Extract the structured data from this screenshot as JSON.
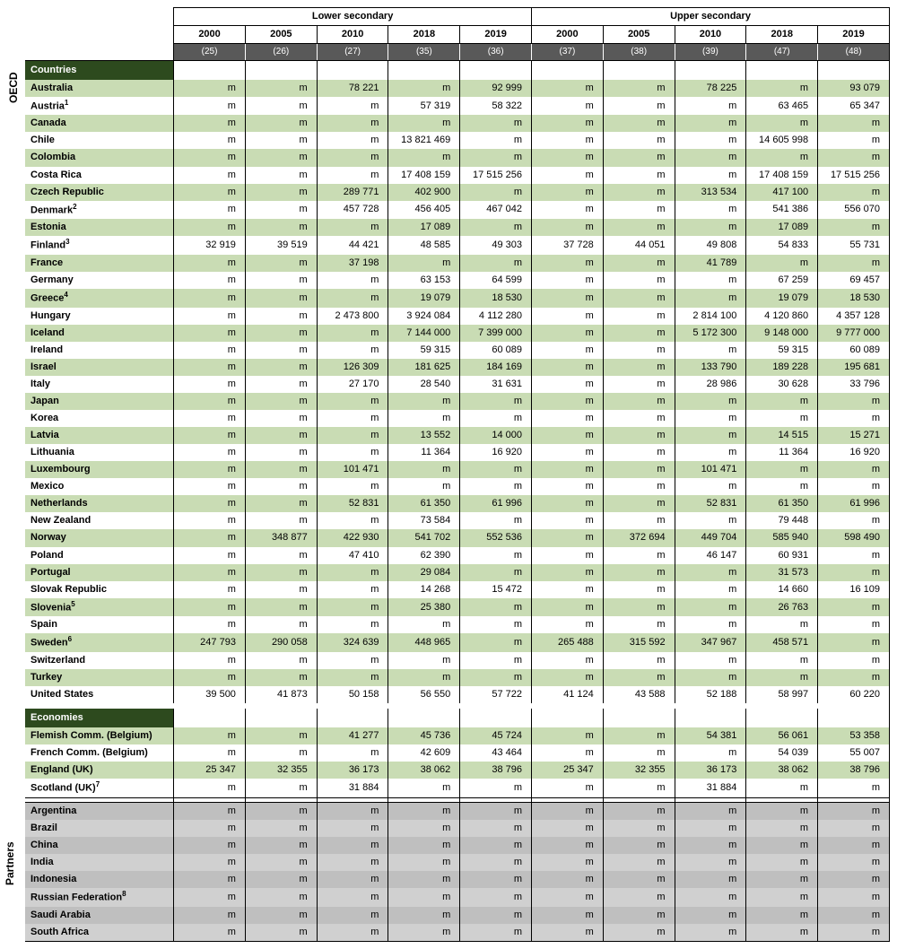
{
  "header": {
    "group_left": "Lower secondary",
    "group_right": "Upper secondary",
    "years_left": [
      "2000",
      "2005",
      "2010",
      "2018",
      "2019"
    ],
    "years_right": [
      "2000",
      "2005",
      "2010",
      "2018",
      "2019"
    ],
    "codes_left": [
      "(25)",
      "(26)",
      "(27)",
      "(35)",
      "(36)"
    ],
    "codes_right": [
      "(37)",
      "(38)",
      "(39)",
      "(47)",
      "(48)"
    ]
  },
  "vlabels": {
    "oecd": "OECD",
    "partners": "Partners"
  },
  "sections": {
    "countries": "Countries",
    "economies": "Economies"
  },
  "colors": {
    "section_bg": "#2d4a1e",
    "stripe_bg": "#c9dcb4",
    "code_bg": "#595959",
    "grey_bg": "#d0d0d0",
    "grey_alt_bg": "#bfbfbf"
  },
  "countries": [
    {
      "name": "Australia",
      "sup": "",
      "vals": [
        "m",
        "m",
        "78 221",
        "m",
        "92 999",
        "m",
        "m",
        "78 225",
        "m",
        "93 079"
      ]
    },
    {
      "name": "Austria",
      "sup": "1",
      "vals": [
        "m",
        "m",
        "m",
        "57 319",
        "58 322",
        "m",
        "m",
        "m",
        "63 465",
        "65 347"
      ]
    },
    {
      "name": "Canada",
      "sup": "",
      "vals": [
        "m",
        "m",
        "m",
        "m",
        "m",
        "m",
        "m",
        "m",
        "m",
        "m"
      ]
    },
    {
      "name": "Chile",
      "sup": "",
      "vals": [
        "m",
        "m",
        "m",
        "13 821 469",
        "m",
        "m",
        "m",
        "m",
        "14 605 998",
        "m"
      ]
    },
    {
      "name": "Colombia",
      "sup": "",
      "vals": [
        "m",
        "m",
        "m",
        "m",
        "m",
        "m",
        "m",
        "m",
        "m",
        "m"
      ]
    },
    {
      "name": "Costa Rica",
      "sup": "",
      "vals": [
        "m",
        "m",
        "m",
        "17 408 159",
        "17 515 256",
        "m",
        "m",
        "m",
        "17 408 159",
        "17 515 256"
      ]
    },
    {
      "name": "Czech Republic",
      "sup": "",
      "vals": [
        "m",
        "m",
        "289 771",
        "402 900",
        "m",
        "m",
        "m",
        "313 534",
        "417 100",
        "m"
      ]
    },
    {
      "name": "Denmark",
      "sup": "2",
      "vals": [
        "m",
        "m",
        "457 728",
        "456 405",
        "467 042",
        "m",
        "m",
        "m",
        "541 386",
        "556 070"
      ]
    },
    {
      "name": "Estonia",
      "sup": "",
      "vals": [
        "m",
        "m",
        "m",
        "17 089",
        "m",
        "m",
        "m",
        "m",
        "17 089",
        "m"
      ]
    },
    {
      "name": "Finland",
      "sup": "3",
      "vals": [
        "32 919",
        "39 519",
        "44 421",
        "48 585",
        "49 303",
        "37 728",
        "44 051",
        "49 808",
        "54 833",
        "55 731"
      ]
    },
    {
      "name": "France",
      "sup": "",
      "vals": [
        "m",
        "m",
        "37 198",
        "m",
        "m",
        "m",
        "m",
        "41 789",
        "m",
        "m"
      ]
    },
    {
      "name": "Germany",
      "sup": "",
      "vals": [
        "m",
        "m",
        "m",
        "63 153",
        "64 599",
        "m",
        "m",
        "m",
        "67 259",
        "69 457"
      ]
    },
    {
      "name": "Greece",
      "sup": "4",
      "vals": [
        "m",
        "m",
        "m",
        "19 079",
        "18 530",
        "m",
        "m",
        "m",
        "19 079",
        "18 530"
      ]
    },
    {
      "name": "Hungary",
      "sup": "",
      "vals": [
        "m",
        "m",
        "2 473 800",
        "3 924 084",
        "4 112 280",
        "m",
        "m",
        "2 814 100",
        "4 120 860",
        "4 357 128"
      ]
    },
    {
      "name": "Iceland",
      "sup": "",
      "vals": [
        "m",
        "m",
        "m",
        "7 144 000",
        "7 399 000",
        "m",
        "m",
        "5 172 300",
        "9 148 000",
        "9 777 000"
      ]
    },
    {
      "name": "Ireland",
      "sup": "",
      "vals": [
        "m",
        "m",
        "m",
        "59 315",
        "60 089",
        "m",
        "m",
        "m",
        "59 315",
        "60 089"
      ]
    },
    {
      "name": "Israel",
      "sup": "",
      "vals": [
        "m",
        "m",
        "126 309",
        "181 625",
        "184 169",
        "m",
        "m",
        "133 790",
        "189 228",
        "195 681"
      ]
    },
    {
      "name": "Italy",
      "sup": "",
      "vals": [
        "m",
        "m",
        "27 170",
        "28 540",
        "31 631",
        "m",
        "m",
        "28 986",
        "30 628",
        "33 796"
      ]
    },
    {
      "name": "Japan",
      "sup": "",
      "vals": [
        "m",
        "m",
        "m",
        "m",
        "m",
        "m",
        "m",
        "m",
        "m",
        "m"
      ]
    },
    {
      "name": "Korea",
      "sup": "",
      "vals": [
        "m",
        "m",
        "m",
        "m",
        "m",
        "m",
        "m",
        "m",
        "m",
        "m"
      ]
    },
    {
      "name": "Latvia",
      "sup": "",
      "vals": [
        "m",
        "m",
        "m",
        "13 552",
        "14 000",
        "m",
        "m",
        "m",
        "14 515",
        "15 271"
      ]
    },
    {
      "name": "Lithuania",
      "sup": "",
      "vals": [
        "m",
        "m",
        "m",
        "11 364",
        "16 920",
        "m",
        "m",
        "m",
        "11 364",
        "16 920"
      ]
    },
    {
      "name": "Luxembourg",
      "sup": "",
      "vals": [
        "m",
        "m",
        "101 471",
        "m",
        "m",
        "m",
        "m",
        "101 471",
        "m",
        "m"
      ]
    },
    {
      "name": "Mexico",
      "sup": "",
      "vals": [
        "m",
        "m",
        "m",
        "m",
        "m",
        "m",
        "m",
        "m",
        "m",
        "m"
      ]
    },
    {
      "name": "Netherlands",
      "sup": "",
      "vals": [
        "m",
        "m",
        "52 831",
        "61 350",
        "61 996",
        "m",
        "m",
        "52 831",
        "61 350",
        "61 996"
      ]
    },
    {
      "name": "New Zealand",
      "sup": "",
      "vals": [
        "m",
        "m",
        "m",
        "73 584",
        "m",
        "m",
        "m",
        "m",
        "79 448",
        "m"
      ]
    },
    {
      "name": "Norway",
      "sup": "",
      "vals": [
        "m",
        "348 877",
        "422 930",
        "541 702",
        "552 536",
        "m",
        "372 694",
        "449 704",
        "585 940",
        "598 490"
      ]
    },
    {
      "name": "Poland",
      "sup": "",
      "vals": [
        "m",
        "m",
        "47 410",
        "62 390",
        "m",
        "m",
        "m",
        "46 147",
        "60 931",
        "m"
      ]
    },
    {
      "name": "Portugal",
      "sup": "",
      "vals": [
        "m",
        "m",
        "m",
        "29 084",
        "m",
        "m",
        "m",
        "m",
        "31 573",
        "m"
      ]
    },
    {
      "name": "Slovak Republic",
      "sup": "",
      "vals": [
        "m",
        "m",
        "m",
        "14 268",
        "15 472",
        "m",
        "m",
        "m",
        "14 660",
        "16 109"
      ]
    },
    {
      "name": "Slovenia",
      "sup": "5",
      "vals": [
        "m",
        "m",
        "m",
        "25 380",
        "m",
        "m",
        "m",
        "m",
        "26 763",
        "m"
      ]
    },
    {
      "name": "Spain",
      "sup": "",
      "vals": [
        "m",
        "m",
        "m",
        "m",
        "m",
        "m",
        "m",
        "m",
        "m",
        "m"
      ]
    },
    {
      "name": "Sweden",
      "sup": "6",
      "vals": [
        "247 793",
        "290 058",
        "324 639",
        "448 965",
        "m",
        "265 488",
        "315 592",
        "347 967",
        "458 571",
        "m"
      ]
    },
    {
      "name": "Switzerland",
      "sup": "",
      "vals": [
        "m",
        "m",
        "m",
        "m",
        "m",
        "m",
        "m",
        "m",
        "m",
        "m"
      ]
    },
    {
      "name": "Turkey",
      "sup": "",
      "vals": [
        "m",
        "m",
        "m",
        "m",
        "m",
        "m",
        "m",
        "m",
        "m",
        "m"
      ]
    },
    {
      "name": "United States",
      "sup": "",
      "vals": [
        "39 500",
        "41 873",
        "50 158",
        "56 550",
        "57 722",
        "41 124",
        "43 588",
        "52 188",
        "58 997",
        "60 220"
      ]
    }
  ],
  "economies": [
    {
      "name": "Flemish Comm. (Belgium)",
      "sup": "",
      "vals": [
        "m",
        "m",
        "41 277",
        "45 736",
        "45 724",
        "m",
        "m",
        "54 381",
        "56 061",
        "53 358"
      ]
    },
    {
      "name": "French Comm. (Belgium)",
      "sup": "",
      "vals": [
        "m",
        "m",
        "m",
        "42 609",
        "43 464",
        "m",
        "m",
        "m",
        "54 039",
        "55 007"
      ]
    },
    {
      "name": "England (UK)",
      "sup": "",
      "vals": [
        "25 347",
        "32 355",
        "36 173",
        "38 062",
        "38 796",
        "25 347",
        "32 355",
        "36 173",
        "38 062",
        "38 796"
      ]
    },
    {
      "name": "Scotland (UK)",
      "sup": "7",
      "vals": [
        "m",
        "m",
        "31 884",
        "m",
        "m",
        "m",
        "m",
        "31 884",
        "m",
        "m"
      ]
    }
  ],
  "partners": [
    {
      "name": "Argentina",
      "sup": "",
      "vals": [
        "m",
        "m",
        "m",
        "m",
        "m",
        "m",
        "m",
        "m",
        "m",
        "m"
      ]
    },
    {
      "name": "Brazil",
      "sup": "",
      "vals": [
        "m",
        "m",
        "m",
        "m",
        "m",
        "m",
        "m",
        "m",
        "m",
        "m"
      ]
    },
    {
      "name": "China",
      "sup": "",
      "vals": [
        "m",
        "m",
        "m",
        "m",
        "m",
        "m",
        "m",
        "m",
        "m",
        "m"
      ]
    },
    {
      "name": "India",
      "sup": "",
      "vals": [
        "m",
        "m",
        "m",
        "m",
        "m",
        "m",
        "m",
        "m",
        "m",
        "m"
      ]
    },
    {
      "name": "Indonesia",
      "sup": "",
      "vals": [
        "m",
        "m",
        "m",
        "m",
        "m",
        "m",
        "m",
        "m",
        "m",
        "m"
      ]
    },
    {
      "name": "Russian Federation",
      "sup": "8",
      "vals": [
        "m",
        "m",
        "m",
        "m",
        "m",
        "m",
        "m",
        "m",
        "m",
        "m"
      ]
    },
    {
      "name": "Saudi Arabia",
      "sup": "",
      "vals": [
        "m",
        "m",
        "m",
        "m",
        "m",
        "m",
        "m",
        "m",
        "m",
        "m"
      ]
    },
    {
      "name": "South Africa",
      "sup": "",
      "vals": [
        "m",
        "m",
        "m",
        "m",
        "m",
        "m",
        "m",
        "m",
        "m",
        "m"
      ]
    }
  ]
}
